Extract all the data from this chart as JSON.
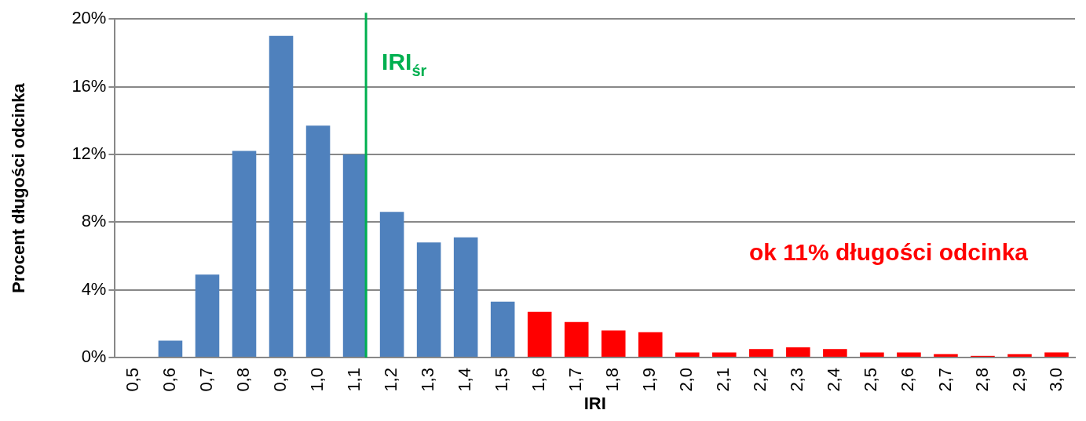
{
  "chart_data": {
    "type": "bar",
    "xlabel": "IRI",
    "ylabel": "Procent długości odcinka",
    "categories": [
      "0,5",
      "0,6",
      "0,7",
      "0,8",
      "0,9",
      "1,0",
      "1,1",
      "1,2",
      "1,3",
      "1,4",
      "1,5",
      "1,6",
      "1,7",
      "1,8",
      "1,9",
      "2,0",
      "2,1",
      "2,2",
      "2,3",
      "2,4",
      "2,5",
      "2,6",
      "2,7",
      "2,8",
      "2,9",
      "3,0"
    ],
    "values": [
      0,
      1.0,
      4.9,
      12.2,
      19.0,
      13.7,
      12.0,
      8.6,
      6.8,
      7.1,
      3.3,
      2.7,
      2.1,
      1.6,
      1.5,
      0.3,
      0.3,
      0.5,
      0.6,
      0.5,
      0.3,
      0.3,
      0.2,
      0.1,
      0.2,
      0.3
    ],
    "colors": [
      "#4f81bd",
      "#4f81bd",
      "#4f81bd",
      "#4f81bd",
      "#4f81bd",
      "#4f81bd",
      "#4f81bd",
      "#4f81bd",
      "#4f81bd",
      "#4f81bd",
      "#4f81bd",
      "#ff0000",
      "#ff0000",
      "#ff0000",
      "#ff0000",
      "#ff0000",
      "#ff0000",
      "#ff0000",
      "#ff0000",
      "#ff0000",
      "#ff0000",
      "#ff0000",
      "#ff0000",
      "#ff0000",
      "#ff0000",
      "#ff0000"
    ],
    "ylim": [
      0,
      20
    ],
    "yticks": [
      {
        "value": 0,
        "label": "0%"
      },
      {
        "value": 4,
        "label": "4%"
      },
      {
        "value": 8,
        "label": "8%"
      },
      {
        "value": 12,
        "label": "12%"
      },
      {
        "value": 16,
        "label": "16%"
      },
      {
        "value": 20,
        "label": "20%"
      }
    ],
    "grid": "y",
    "legend": false,
    "ref_lines": [
      {
        "axis": "x",
        "value": "1,1",
        "label": "IRI$_{śr}$",
        "color": "#00b050"
      }
    ],
    "annotations": [
      "ok 11% długości odcinka"
    ]
  }
}
